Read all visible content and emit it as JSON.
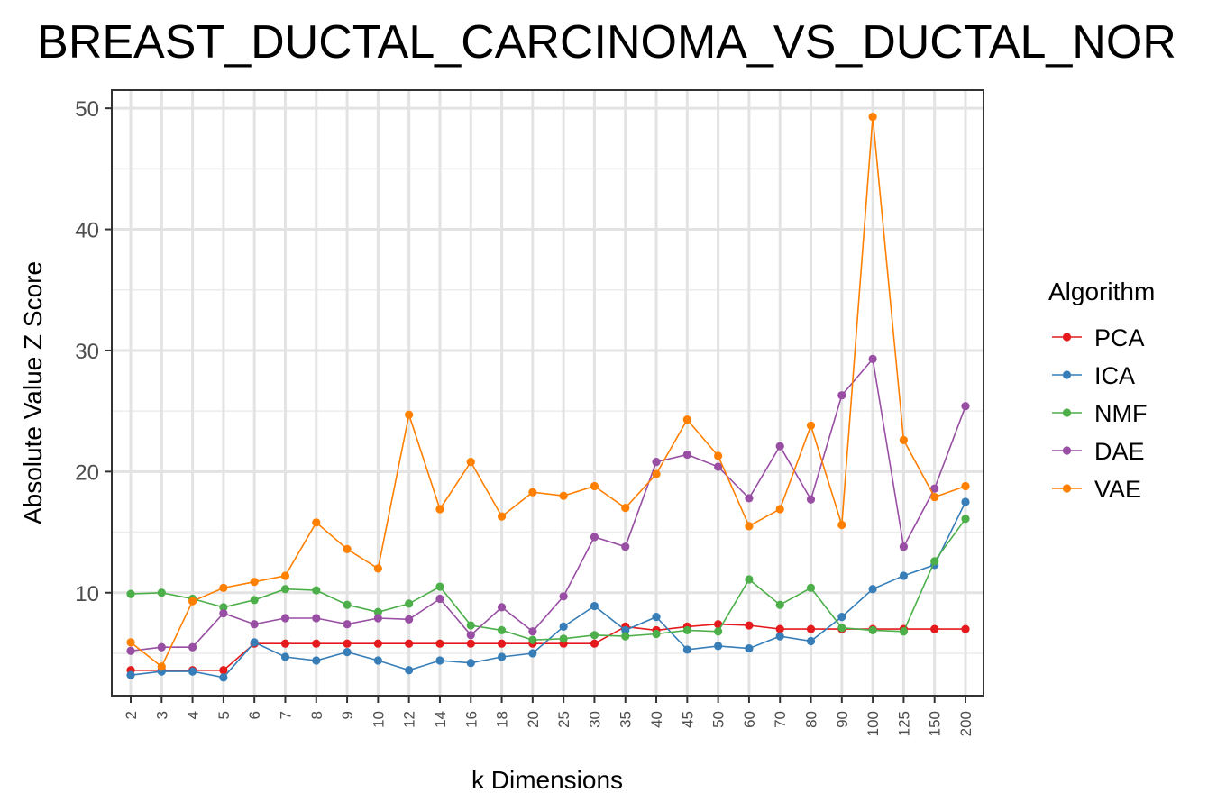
{
  "chart_data": {
    "type": "line",
    "title": "BREAST_DUCTAL_CARCINOMA_VS_DUCTAL_NOR",
    "xlabel": "k Dimensions",
    "ylabel": "Absolute Value Z Score",
    "categories": [
      "2",
      "3",
      "4",
      "5",
      "6",
      "7",
      "8",
      "9",
      "10",
      "12",
      "14",
      "16",
      "18",
      "20",
      "25",
      "30",
      "35",
      "40",
      "45",
      "50",
      "60",
      "70",
      "80",
      "90",
      "100",
      "125",
      "150",
      "200"
    ],
    "yticks": [
      10,
      20,
      30,
      40,
      50
    ],
    "ylim": [
      1.5,
      51.5
    ],
    "grid": true,
    "legend": {
      "title": "Algorithm",
      "placement": "right"
    },
    "series": [
      {
        "name": "PCA",
        "color": "#e41a1c",
        "values": [
          3.6,
          3.6,
          3.6,
          3.6,
          5.8,
          5.8,
          5.8,
          5.8,
          5.8,
          5.8,
          5.8,
          5.8,
          5.8,
          5.8,
          5.8,
          5.8,
          7.2,
          6.9,
          7.2,
          7.4,
          7.3,
          7.0,
          7.0,
          7.0,
          7.0,
          7.0,
          7.0,
          7.0
        ]
      },
      {
        "name": "ICA",
        "color": "#377eb8",
        "values": [
          3.2,
          3.5,
          3.5,
          3.0,
          5.9,
          4.7,
          4.4,
          5.1,
          4.4,
          3.6,
          4.4,
          4.2,
          4.7,
          5.0,
          7.2,
          8.9,
          6.9,
          8.0,
          5.3,
          5.6,
          5.4,
          6.4,
          6.0,
          8.0,
          10.3,
          11.4,
          12.3,
          17.5
        ]
      },
      {
        "name": "NMF",
        "color": "#4daf4a",
        "values": [
          9.9,
          10.0,
          9.5,
          8.8,
          9.4,
          10.3,
          10.2,
          9.0,
          8.4,
          9.1,
          10.5,
          7.3,
          6.9,
          6.1,
          6.2,
          6.5,
          6.4,
          6.6,
          6.9,
          6.8,
          11.1,
          9.0,
          10.4,
          7.1,
          6.9,
          6.8,
          12.6,
          16.1
        ]
      },
      {
        "name": "DAE",
        "color": "#984ea3",
        "values": [
          5.2,
          5.5,
          5.5,
          8.3,
          7.4,
          7.9,
          7.9,
          7.4,
          7.9,
          7.8,
          9.5,
          6.5,
          8.8,
          6.8,
          9.7,
          14.6,
          13.8,
          20.8,
          21.4,
          20.4,
          17.8,
          22.1,
          17.7,
          26.3,
          29.3,
          13.8,
          18.6,
          25.4
        ]
      },
      {
        "name": "VAE",
        "color": "#ff7f00",
        "values": [
          5.9,
          3.9,
          9.3,
          10.4,
          10.9,
          11.4,
          15.8,
          13.6,
          12.0,
          24.7,
          16.9,
          20.8,
          16.3,
          18.3,
          18.0,
          18.8,
          17.0,
          19.8,
          24.3,
          21.3,
          15.5,
          16.9,
          23.8,
          15.6,
          49.3,
          22.6,
          17.9,
          18.8
        ]
      }
    ]
  }
}
